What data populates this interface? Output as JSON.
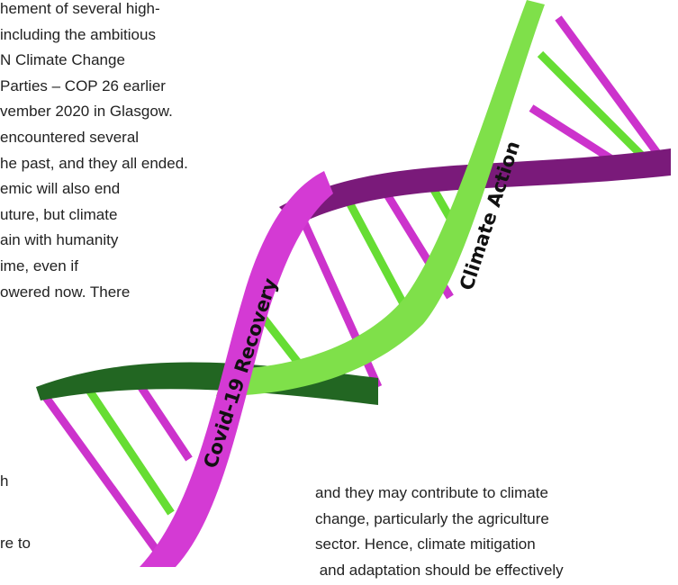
{
  "paragraph_left": {
    "lines": [
      "hement of several high-",
      "including the ambitious",
      "N Climate Change",
      "Parties – COP 26 earlier",
      "vember 2020 in Glasgow.",
      "encountered several",
      "he past, and they all ended.",
      "emic will also end",
      "uture, but climate",
      "ain with humanity",
      "ime, even if",
      "owered now. There"
    ]
  },
  "fragments": [
    "h",
    "re to"
  ],
  "paragraph_right": {
    "lines": [
      "and they may contribute to climate",
      "change, particularly the agriculture",
      "sector. Hence, climate mitigation",
      " and adaptation should be effectively"
    ]
  },
  "figure": {
    "labels": [
      "Covid-19 Recovery",
      "Climate Action"
    ]
  }
}
